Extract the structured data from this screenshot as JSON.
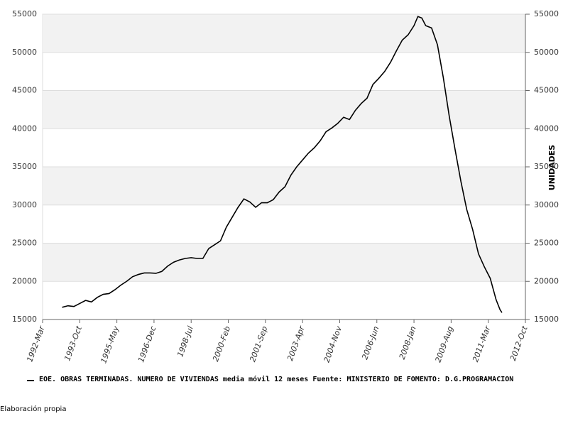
{
  "chart_data": {
    "type": "line",
    "series": [
      {
        "name": "EOE. OBRAS TERMINADAS. NUMERO DE VIVIENDAS media móvil 12 meses  Fuente: MINISTERIO DE FOMENTO: D.G.PROGRAMACION",
        "color": "#000000",
        "x": [
          "1993-01",
          "1993-04",
          "1993-07",
          "1993-10",
          "1994-01",
          "1994-04",
          "1994-07",
          "1994-10",
          "1995-01",
          "1995-04",
          "1995-07",
          "1995-10",
          "1996-01",
          "1996-04",
          "1996-07",
          "1996-10",
          "1997-01",
          "1997-04",
          "1997-07",
          "1997-10",
          "1998-01",
          "1998-04",
          "1998-07",
          "1998-10",
          "1999-01",
          "1999-04",
          "1999-07",
          "1999-10",
          "2000-01",
          "2000-04",
          "2000-07",
          "2000-10",
          "2001-01",
          "2001-04",
          "2001-07",
          "2001-10",
          "2002-01",
          "2002-04",
          "2002-07",
          "2002-10",
          "2003-01",
          "2003-04",
          "2003-07",
          "2003-10",
          "2004-01",
          "2004-04",
          "2004-07",
          "2004-10",
          "2005-01",
          "2005-04",
          "2005-07",
          "2005-10",
          "2006-01",
          "2006-04",
          "2006-07",
          "2006-10",
          "2007-01",
          "2007-04",
          "2007-07",
          "2007-10",
          "2008-01",
          "2008-03",
          "2008-05",
          "2008-07",
          "2008-10",
          "2009-01",
          "2009-04",
          "2009-07",
          "2009-10",
          "2010-01",
          "2010-04",
          "2010-07",
          "2010-10",
          "2011-01",
          "2011-04",
          "2011-07",
          "2011-09",
          "2011-10"
        ],
        "values": [
          16600,
          16800,
          16700,
          17100,
          17500,
          17300,
          17900,
          18300,
          18400,
          18900,
          19500,
          20000,
          20600,
          20900,
          21100,
          21100,
          21050,
          21300,
          22000,
          22500,
          22800,
          23000,
          23100,
          23000,
          23000,
          24300,
          24800,
          25300,
          27100,
          28400,
          29700,
          30800,
          30400,
          29700,
          30300,
          30300,
          30700,
          31700,
          32400,
          33900,
          35000,
          35900,
          36800,
          37500,
          38400,
          39600,
          40100,
          40700,
          41500,
          41200,
          42400,
          43300,
          44000,
          45800,
          46600,
          47500,
          48700,
          50200,
          51600,
          52300,
          53500,
          54700,
          54500,
          53500,
          53200,
          51000,
          46700,
          41700,
          37300,
          33100,
          29400,
          26800,
          23600,
          21900,
          20400,
          17600,
          16300,
          15900
        ]
      }
    ],
    "xlim": [
      "1992-03",
      "2012-10"
    ],
    "xticks": [
      {
        "value": "1992-03",
        "label": "1992-Mar"
      },
      {
        "value": "1993-10",
        "label": "1993-Oct"
      },
      {
        "value": "1995-05",
        "label": "1995-May"
      },
      {
        "value": "1996-12",
        "label": "1996-Dec"
      },
      {
        "value": "1998-07",
        "label": "1998-Jul"
      },
      {
        "value": "2000-02",
        "label": "2000-Feb"
      },
      {
        "value": "2001-09",
        "label": "2001-Sep"
      },
      {
        "value": "2003-04",
        "label": "2003-Apr"
      },
      {
        "value": "2004-11",
        "label": "2004-Nov"
      },
      {
        "value": "2006-06",
        "label": "2006-Jun"
      },
      {
        "value": "2008-01",
        "label": "2008-Jan"
      },
      {
        "value": "2009-08",
        "label": "2009-Aug"
      },
      {
        "value": "2011-03",
        "label": "2011-Mar"
      },
      {
        "value": "2012-10",
        "label": "2012-Oct"
      }
    ],
    "ylim": [
      15000,
      55000
    ],
    "yticks": [
      15000,
      20000,
      25000,
      30000,
      35000,
      40000,
      45000,
      50000,
      55000
    ],
    "y2lim": [
      15000,
      55000
    ],
    "y2ticks": [
      15000,
      20000,
      25000,
      30000,
      35000,
      40000,
      45000,
      50000,
      55000
    ],
    "y2label": "UNIDADES",
    "note": "Elaboración propia",
    "grid": true
  }
}
